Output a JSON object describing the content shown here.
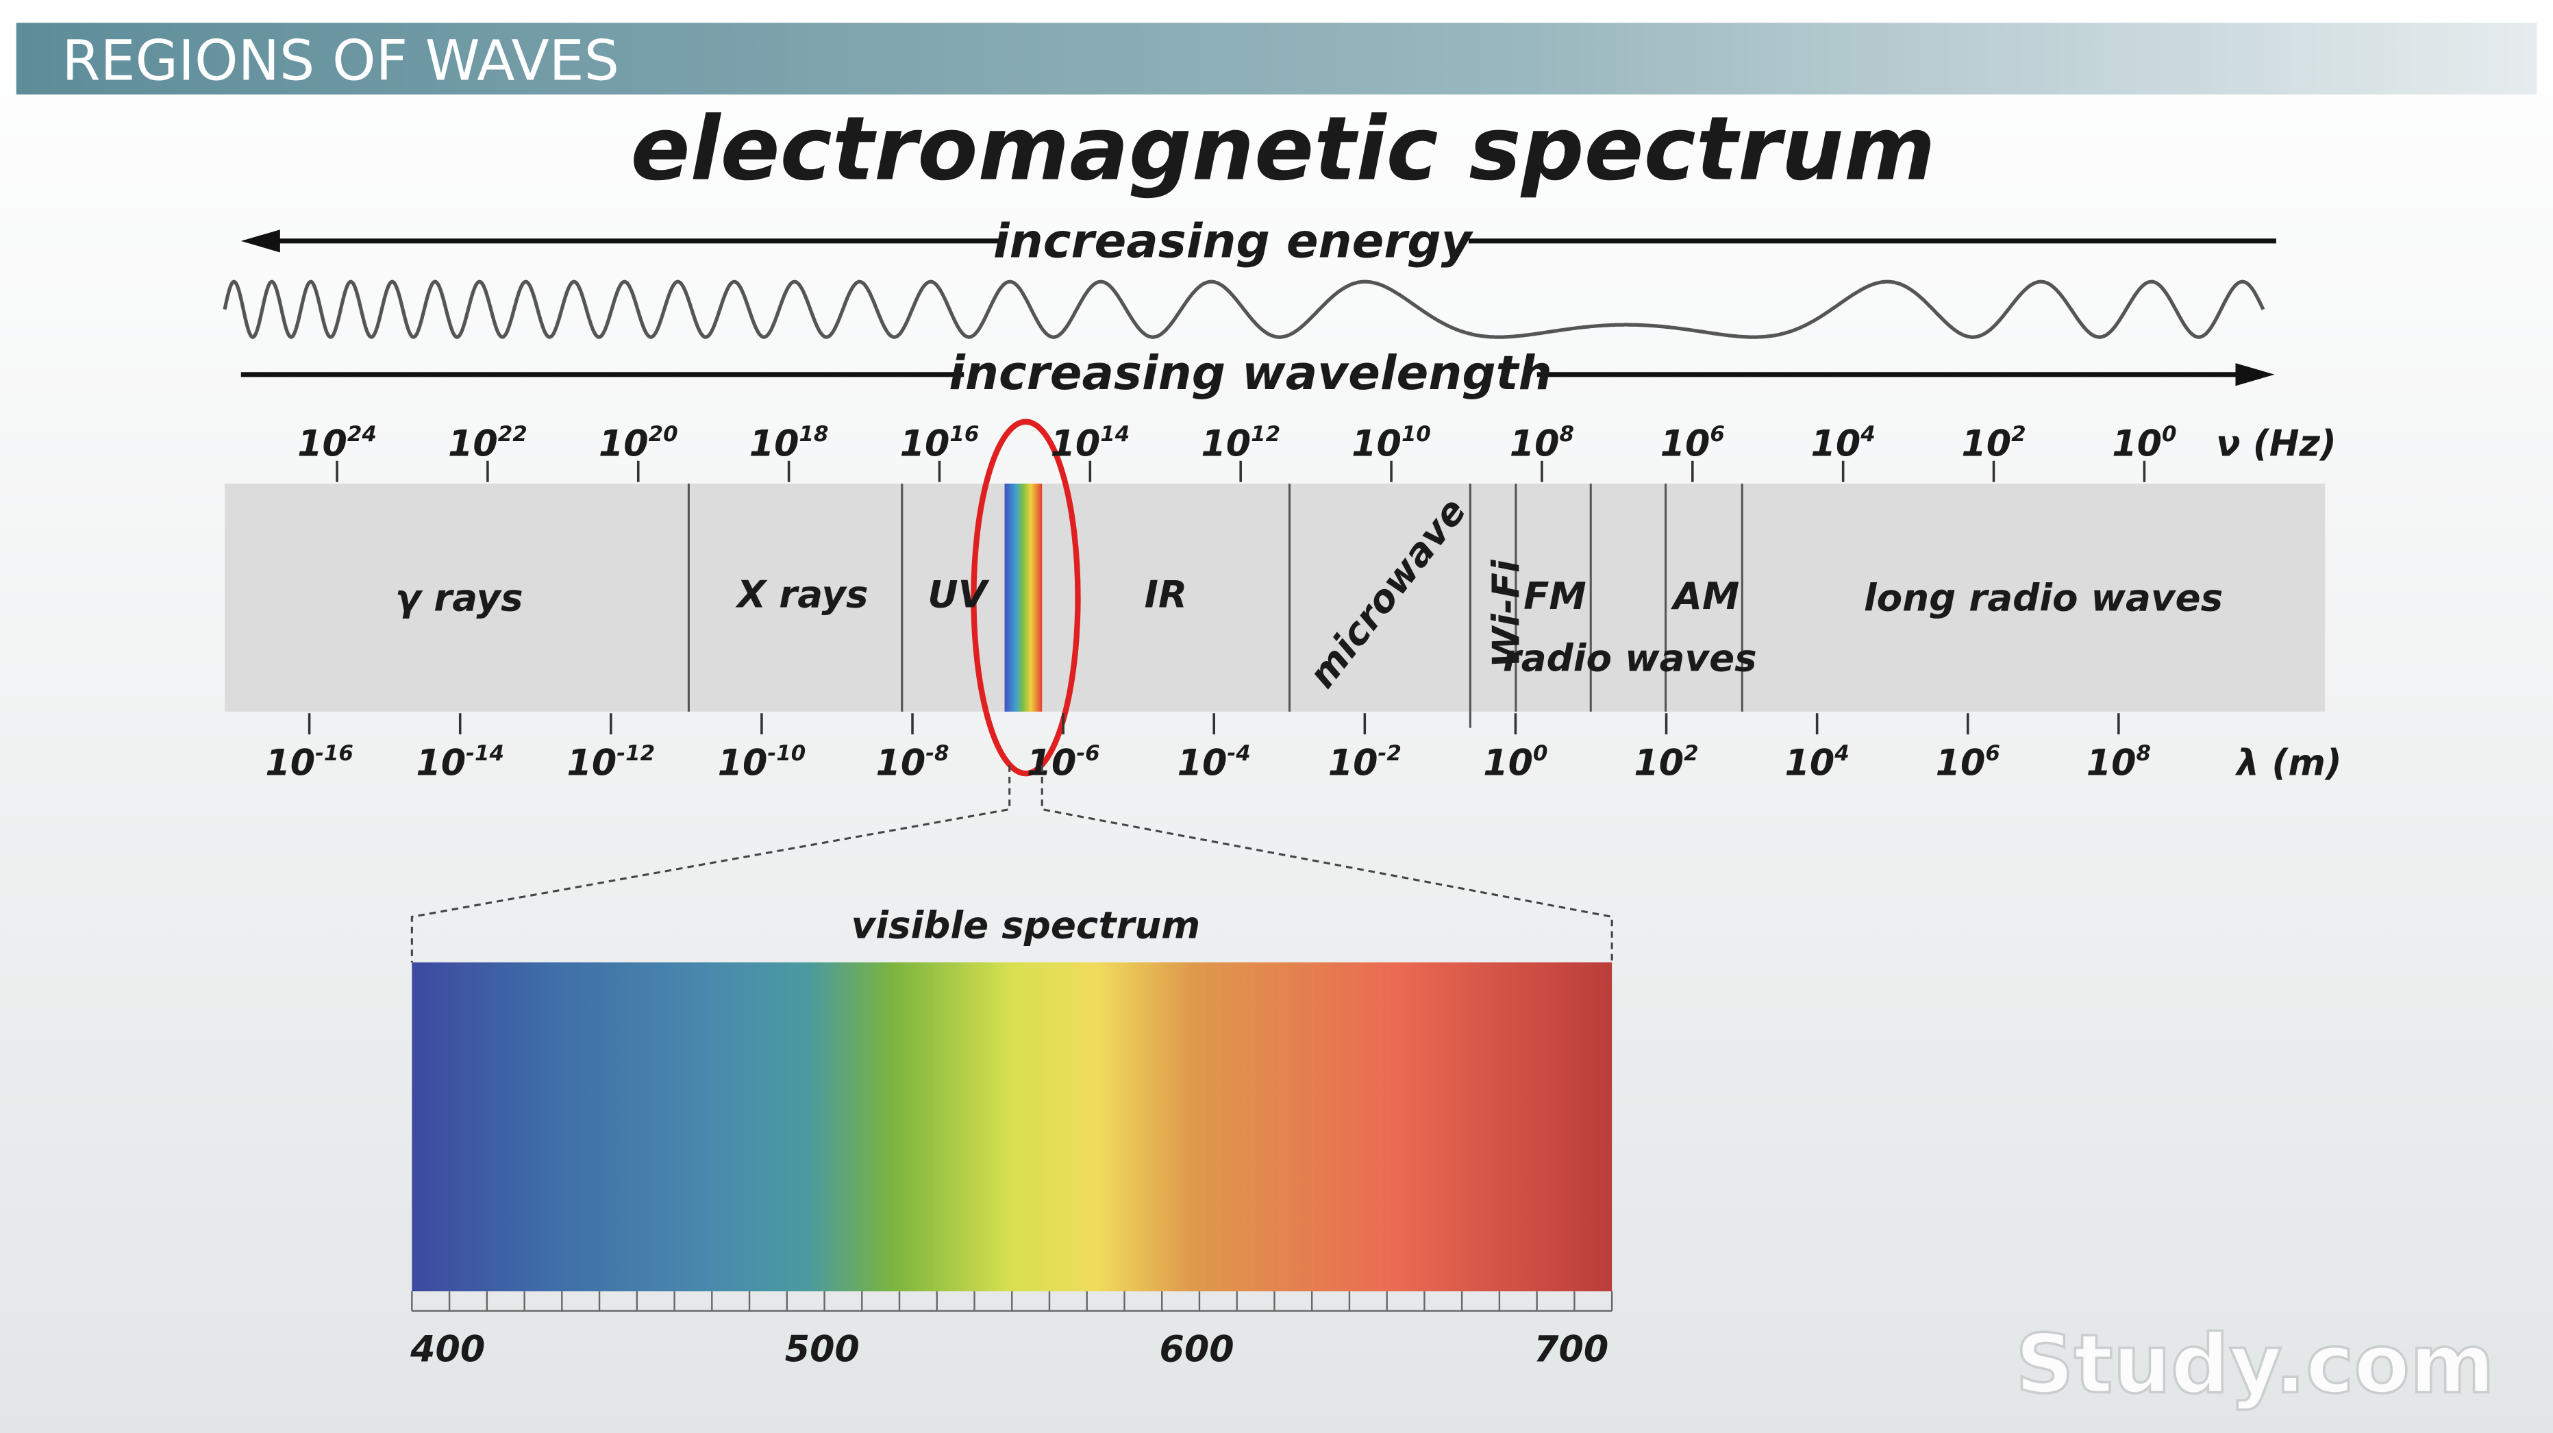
{
  "header": {
    "title": "REGIONS OF WAVES"
  },
  "diagram": {
    "title": "electromagnetic spectrum",
    "energy_label": "increasing energy",
    "wavelength_label": "increasing wavelength",
    "frequency_unit": "ν (Hz)",
    "wavelength_unit": "λ (m)",
    "frequency_ticks": [
      {
        "base": "10",
        "exp": "24"
      },
      {
        "base": "10",
        "exp": "22"
      },
      {
        "base": "10",
        "exp": "20"
      },
      {
        "base": "10",
        "exp": "18"
      },
      {
        "base": "10",
        "exp": "16"
      },
      {
        "base": "10",
        "exp": "14"
      },
      {
        "base": "10",
        "exp": "12"
      },
      {
        "base": "10",
        "exp": "10"
      },
      {
        "base": "10",
        "exp": "8"
      },
      {
        "base": "10",
        "exp": "6"
      },
      {
        "base": "10",
        "exp": "4"
      },
      {
        "base": "10",
        "exp": "2"
      },
      {
        "base": "10",
        "exp": "0"
      }
    ],
    "wavelength_ticks": [
      {
        "base": "10",
        "exp": "-16"
      },
      {
        "base": "10",
        "exp": "-14"
      },
      {
        "base": "10",
        "exp": "-12"
      },
      {
        "base": "10",
        "exp": "-10"
      },
      {
        "base": "10",
        "exp": "-8"
      },
      {
        "base": "10",
        "exp": "-6"
      },
      {
        "base": "10",
        "exp": "-4"
      },
      {
        "base": "10",
        "exp": "-2"
      },
      {
        "base": "10",
        "exp": "0"
      },
      {
        "base": "10",
        "exp": "2"
      },
      {
        "base": "10",
        "exp": "4"
      },
      {
        "base": "10",
        "exp": "6"
      },
      {
        "base": "10",
        "exp": "8"
      }
    ],
    "regions": [
      "γ rays",
      "X rays",
      "UV",
      "IR",
      "microwave",
      "Wi-Fi",
      "FM",
      "radio waves",
      "AM",
      "long radio waves"
    ],
    "visible": {
      "label": "visible spectrum",
      "ticks": [
        "400",
        "500",
        "600",
        "700"
      ]
    }
  },
  "watermark": "Study.com"
}
